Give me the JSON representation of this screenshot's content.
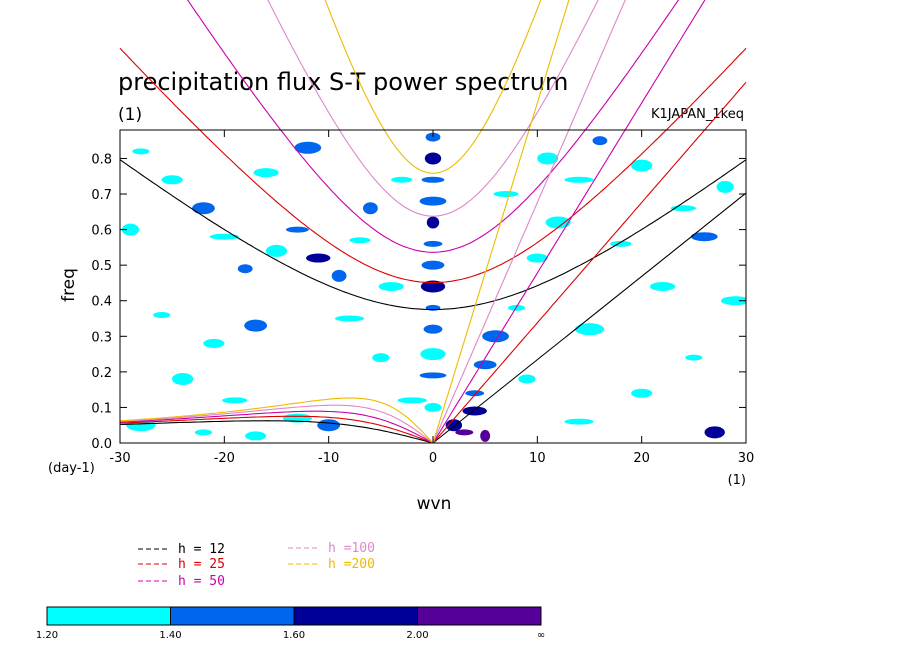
{
  "chart_data": {
    "type": "contour",
    "title": "precipitation flux S-T power spectrum",
    "unit_label": "(1)",
    "run_label": "K1JAPAN_1keq",
    "xlabel": "wvn",
    "ylabel": "freq",
    "x_unit_label": "(1)",
    "y_unit_label": "(day-1)",
    "xlim": [
      -30,
      30
    ],
    "ylim": [
      0,
      0.88
    ],
    "x_ticks": [
      -30,
      -20,
      -10,
      0,
      10,
      20,
      30
    ],
    "x_tick_labels": [
      "-30",
      "-20",
      "-10",
      "0",
      "10",
      "20",
      "30"
    ],
    "y_ticks": [
      0.0,
      0.1,
      0.2,
      0.3,
      0.4,
      0.5,
      0.6,
      0.7,
      0.8
    ],
    "y_tick_labels": [
      "0.0",
      "0.1",
      "0.2",
      "0.3",
      "0.4",
      "0.5",
      "0.6",
      "0.7",
      "0.8"
    ],
    "grid": false,
    "dispersion_curves": [
      {
        "label": "h = 12",
        "h": 12,
        "color": "#000000"
      },
      {
        "label": "h = 25",
        "h": 25,
        "color": "#dd0000"
      },
      {
        "label": "h = 50",
        "h": 50,
        "color": "#cc00aa"
      },
      {
        "label": "h =100",
        "h": 100,
        "color": "#dd88cc"
      },
      {
        "label": "h =200",
        "h": 200,
        "color": "#eebb00"
      }
    ],
    "colorbar": {
      "levels": [
        "1.20",
        "1.40",
        "1.60",
        "2.00",
        "∞"
      ],
      "colors": [
        "#00ffff",
        "#0066ee",
        "#000099",
        "#550099"
      ]
    },
    "blobs": [
      {
        "x": -28,
        "y": 0.82,
        "level": 0
      },
      {
        "x": -25,
        "y": 0.74,
        "level": 0
      },
      {
        "x": -22,
        "y": 0.66,
        "level": 1
      },
      {
        "x": -20,
        "y": 0.58,
        "level": 0
      },
      {
        "x": -18,
        "y": 0.49,
        "level": 1
      },
      {
        "x": -15,
        "y": 0.54,
        "level": 0
      },
      {
        "x": -13,
        "y": 0.6,
        "level": 1
      },
      {
        "x": -11,
        "y": 0.52,
        "level": 2
      },
      {
        "x": -9,
        "y": 0.47,
        "level": 1
      },
      {
        "x": -7,
        "y": 0.57,
        "level": 0
      },
      {
        "x": -16,
        "y": 0.76,
        "level": 0
      },
      {
        "x": -12,
        "y": 0.83,
        "level": 1
      },
      {
        "x": -26,
        "y": 0.36,
        "level": 0
      },
      {
        "x": -21,
        "y": 0.28,
        "level": 0
      },
      {
        "x": -17,
        "y": 0.33,
        "level": 1
      },
      {
        "x": -8,
        "y": 0.35,
        "level": 0
      },
      {
        "x": -5,
        "y": 0.24,
        "level": 0
      },
      {
        "x": -24,
        "y": 0.18,
        "level": 0
      },
      {
        "x": -19,
        "y": 0.12,
        "level": 0
      },
      {
        "x": -13,
        "y": 0.07,
        "level": 0
      },
      {
        "x": -6,
        "y": 0.66,
        "level": 1
      },
      {
        "x": -3,
        "y": 0.74,
        "level": 0
      },
      {
        "x": -4,
        "y": 0.44,
        "level": 0
      },
      {
        "x": -28,
        "y": 0.05,
        "level": 0
      },
      {
        "x": -22,
        "y": 0.03,
        "level": 0
      },
      {
        "x": -17,
        "y": 0.02,
        "level": 0
      },
      {
        "x": -10,
        "y": 0.05,
        "level": 1
      },
      {
        "x": -2,
        "y": 0.12,
        "level": 0
      },
      {
        "x": 0,
        "y": 0.86,
        "level": 1
      },
      {
        "x": 0,
        "y": 0.8,
        "level": 2
      },
      {
        "x": 0,
        "y": 0.74,
        "level": 1
      },
      {
        "x": 0,
        "y": 0.68,
        "level": 1
      },
      {
        "x": 0,
        "y": 0.62,
        "level": 2
      },
      {
        "x": 0,
        "y": 0.56,
        "level": 1
      },
      {
        "x": 0,
        "y": 0.5,
        "level": 1
      },
      {
        "x": 0,
        "y": 0.44,
        "level": 2
      },
      {
        "x": 0,
        "y": 0.38,
        "level": 1
      },
      {
        "x": 0,
        "y": 0.32,
        "level": 1
      },
      {
        "x": 0,
        "y": 0.25,
        "level": 0
      },
      {
        "x": 0,
        "y": 0.19,
        "level": 1
      },
      {
        "x": 0,
        "y": 0.1,
        "level": 0
      },
      {
        "x": 2,
        "y": 0.05,
        "level": 2
      },
      {
        "x": 3,
        "y": 0.03,
        "level": 3
      },
      {
        "x": 4,
        "y": 0.09,
        "level": 2
      },
      {
        "x": 5,
        "y": 0.02,
        "level": 3
      },
      {
        "x": 4,
        "y": 0.14,
        "level": 1
      },
      {
        "x": 5,
        "y": 0.22,
        "level": 1
      },
      {
        "x": 6,
        "y": 0.3,
        "level": 1
      },
      {
        "x": 8,
        "y": 0.38,
        "level": 0
      },
      {
        "x": 10,
        "y": 0.52,
        "level": 0
      },
      {
        "x": 12,
        "y": 0.62,
        "level": 0
      },
      {
        "x": 14,
        "y": 0.74,
        "level": 0
      },
      {
        "x": 16,
        "y": 0.85,
        "level": 1
      },
      {
        "x": 20,
        "y": 0.78,
        "level": 0
      },
      {
        "x": 24,
        "y": 0.66,
        "level": 0
      },
      {
        "x": 26,
        "y": 0.58,
        "level": 1
      },
      {
        "x": 28,
        "y": 0.72,
        "level": 0
      },
      {
        "x": 18,
        "y": 0.56,
        "level": 0
      },
      {
        "x": 22,
        "y": 0.44,
        "level": 0
      },
      {
        "x": 15,
        "y": 0.32,
        "level": 0
      },
      {
        "x": 25,
        "y": 0.24,
        "level": 0
      },
      {
        "x": 20,
        "y": 0.14,
        "level": 0
      },
      {
        "x": 27,
        "y": 0.03,
        "level": 2
      },
      {
        "x": 14,
        "y": 0.06,
        "level": 0
      },
      {
        "x": 9,
        "y": 0.18,
        "level": 0
      },
      {
        "x": 11,
        "y": 0.8,
        "level": 0
      },
      {
        "x": 7,
        "y": 0.7,
        "level": 0
      },
      {
        "x": 29,
        "y": 0.4,
        "level": 0
      },
      {
        "x": -29,
        "y": 0.6,
        "level": 0
      }
    ]
  }
}
